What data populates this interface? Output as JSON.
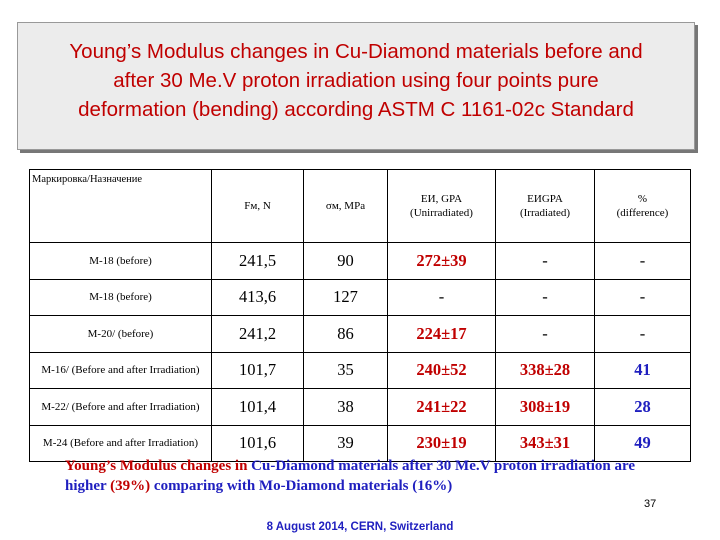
{
  "title": {
    "line1": "Young’s Modulus changes in Cu-Diamond materials before and",
    "line2": "after 30 Me.V proton irradiation using four points pure",
    "line3": "deformation (bending) according ASTM C 1161-02c Standard"
  },
  "table": {
    "headers": {
      "marking": "Маркировка/Назначение",
      "force": "Fм, N",
      "stress": "σм, MPa",
      "e_unirr_title": "EИ, GPA",
      "e_unirr_sub": "(Unirradiated)",
      "e_irr_title": "EИGPA",
      "e_irr_sub": "(Irradiated)",
      "pct_title": "%",
      "pct_sub": "(difference)"
    },
    "rows": [
      {
        "label": "M-18 (before)",
        "f": "241,5",
        "s": "90",
        "e1": "272±39",
        "e2": "-",
        "pct": "-"
      },
      {
        "label": "M-18 (before)",
        "f": "413,6",
        "s": "127",
        "e1": "-",
        "e2": "-",
        "pct": "-"
      },
      {
        "label": "M-20/ (before)",
        "f": "241,2",
        "s": "86",
        "e1": "224±17",
        "e2": "-",
        "pct": "-"
      },
      {
        "label": "M-16/ (Before and after Irradiation)",
        "f": "101,7",
        "s": "35",
        "e1": "240±52",
        "e2": "338±28",
        "pct": "41"
      },
      {
        "label": "M-22/ (Before and after Irradiation)",
        "f": "101,4",
        "s": "38",
        "e1": "241±22",
        "e2": "308±19",
        "pct": "28"
      },
      {
        "label": "M-24 (Before and after Irradiation)",
        "f": "101,6",
        "s": "39",
        "e1": "230±19",
        "e2": "343±31",
        "pct": "49"
      }
    ]
  },
  "footnote": {
    "p1": "Young’s Modulus changes in ",
    "p2": "Cu-Diamond materials after 30 Me.V proton irradiation are higher ",
    "p3": "(39%)",
    "p4": " comparing with ",
    "p5": "Mo-Diamond materials (16%)"
  },
  "page_number": "37",
  "date_line": "8 August 2014, CERN, Switzerland",
  "colors": {
    "title": "#c00000",
    "accent_blue": "#1f1fbf",
    "accent_red": "#c00000",
    "title_bg": "#ececec"
  }
}
